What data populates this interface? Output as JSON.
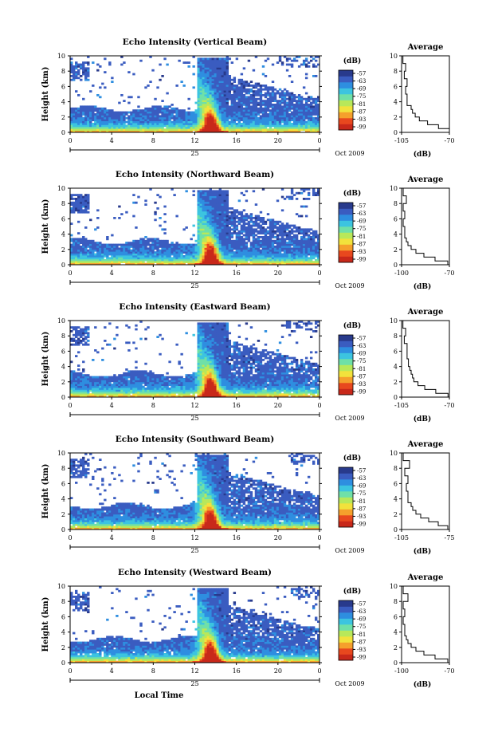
{
  "figure": {
    "date_label": "Oct 2009",
    "day_label": "25",
    "x_axis_title": "Local Time",
    "y_axis_title": "Height (km)",
    "colorbar_title": "(dB)",
    "average_title": "Average",
    "average_unit": "(dB)",
    "colors": {
      "scale": [
        "#283a8c",
        "#3a5cc0",
        "#2e8ee0",
        "#3cc4e0",
        "#6fe0a8",
        "#b8e85a",
        "#f2e23c",
        "#f5a02c",
        "#e8481e",
        "#c8281a"
      ],
      "outline": "#000000",
      "background": "#ffffff"
    }
  },
  "chart_data": [
    {
      "type": "heatmap",
      "title": "Echo Intensity (Vertical Beam)",
      "xlabel": "",
      "ylabel": "Height (km)",
      "xlim": [
        0,
        24
      ],
      "ylim": [
        0,
        10
      ],
      "x_ticks": [
        "0",
        "4",
        "8",
        "12",
        "16",
        "20",
        "0"
      ],
      "y_ticks": [
        "0",
        "2",
        "4",
        "6",
        "8",
        "10"
      ],
      "colorbar": {
        "label": "(dB)",
        "ticks": [
          "-57",
          "-63",
          "-69",
          "-75",
          "-81",
          "-87",
          "-93",
          "-99"
        ]
      },
      "average_profile": {
        "xlim": [
          -105,
          -70
        ],
        "x_ticks": [
          "-105",
          "-70"
        ],
        "y_ticks": [
          "0",
          "2",
          "4",
          "6",
          "8",
          "10"
        ],
        "height_km": [
          0,
          0.5,
          1,
          1.5,
          2,
          2.5,
          3,
          3.5,
          4,
          5,
          6,
          7,
          8,
          9,
          10
        ],
        "db": [
          -70,
          -78,
          -86,
          -92,
          -95,
          -97,
          -98,
          -101,
          -101,
          -102,
          -101,
          -103,
          -102,
          -104,
          -104
        ]
      }
    },
    {
      "type": "heatmap",
      "title": "Echo Intensity (Northward Beam)",
      "xlabel": "",
      "ylabel": "Height (km)",
      "xlim": [
        0,
        24
      ],
      "ylim": [
        0,
        10
      ],
      "x_ticks": [
        "0",
        "4",
        "8",
        "12",
        "16",
        "20",
        "0"
      ],
      "y_ticks": [
        "0",
        "2",
        "4",
        "6",
        "8",
        "10"
      ],
      "colorbar": {
        "label": "(dB)",
        "ticks": [
          "-57",
          "-63",
          "-69",
          "-75",
          "-81",
          "-87",
          "-93",
          "-99"
        ]
      },
      "average_profile": {
        "xlim": [
          -100,
          -70
        ],
        "x_ticks": [
          "-100",
          "-70"
        ],
        "y_ticks": [
          "0",
          "2",
          "4",
          "6",
          "8",
          "10"
        ],
        "height_km": [
          0,
          0.5,
          1,
          1.5,
          2,
          2.5,
          3,
          3.5,
          4,
          5,
          6,
          7,
          8,
          9,
          10
        ],
        "db": [
          -71,
          -79,
          -86,
          -91,
          -94,
          -96,
          -97,
          -98,
          -98,
          -99,
          -98,
          -99,
          -97,
          -99,
          -99
        ]
      }
    },
    {
      "type": "heatmap",
      "title": "Echo Intensity (Eastward Beam)",
      "xlabel": "",
      "ylabel": "Height (km)",
      "xlim": [
        0,
        24
      ],
      "ylim": [
        0,
        10
      ],
      "x_ticks": [
        "0",
        "4",
        "8",
        "12",
        "16",
        "20",
        "0"
      ],
      "y_ticks": [
        "0",
        "2",
        "4",
        "6",
        "8",
        "10"
      ],
      "colorbar": {
        "label": "(dB)",
        "ticks": [
          "-57",
          "-63",
          "-69",
          "-75",
          "-81",
          "-87",
          "-93",
          "-99"
        ]
      },
      "average_profile": {
        "xlim": [
          -105,
          -70
        ],
        "x_ticks": [
          "-105",
          "-70"
        ],
        "y_ticks": [
          "0",
          "2",
          "4",
          "6",
          "8",
          "10"
        ],
        "height_km": [
          0,
          0.5,
          1,
          1.5,
          2,
          2.5,
          3,
          3.5,
          4,
          5,
          6,
          7,
          8,
          9,
          10
        ],
        "db": [
          -71,
          -80,
          -88,
          -93,
          -96,
          -97,
          -98,
          -99,
          -100,
          -101,
          -101,
          -103,
          -102,
          -104,
          -104
        ]
      }
    },
    {
      "type": "heatmap",
      "title": "Echo Intensity (Southward Beam)",
      "xlabel": "",
      "ylabel": "Height (km)",
      "xlim": [
        0,
        24
      ],
      "ylim": [
        0,
        10
      ],
      "x_ticks": [
        "0",
        "4",
        "8",
        "12",
        "16",
        "20",
        "0"
      ],
      "y_ticks": [
        "0",
        "2",
        "4",
        "6",
        "8",
        "10"
      ],
      "colorbar": {
        "label": "(dB)",
        "ticks": [
          "-57",
          "-63",
          "-69",
          "-75",
          "-81",
          "-87",
          "-93",
          "-99"
        ]
      },
      "average_profile": {
        "xlim": [
          -105,
          -75
        ],
        "x_ticks": [
          "-105",
          "-75"
        ],
        "y_ticks": [
          "0",
          "2",
          "4",
          "6",
          "8",
          "10"
        ],
        "height_km": [
          0,
          0.5,
          1,
          1.5,
          2,
          2.5,
          3,
          3.5,
          4,
          5,
          6,
          7,
          8,
          9,
          10
        ],
        "db": [
          -76,
          -82,
          -88,
          -93,
          -96,
          -98,
          -99,
          -101,
          -101,
          -102,
          -101,
          -103,
          -100,
          -104,
          -104
        ]
      }
    },
    {
      "type": "heatmap",
      "title": "Echo Intensity (Westward Beam)",
      "xlabel": "Local Time",
      "ylabel": "Height (km)",
      "xlim": [
        0,
        24
      ],
      "ylim": [
        0,
        10
      ],
      "x_ticks": [
        "0",
        "4",
        "8",
        "12",
        "16",
        "20",
        "0"
      ],
      "y_ticks": [
        "0",
        "2",
        "4",
        "6",
        "8",
        "10"
      ],
      "colorbar": {
        "label": "(dB)",
        "ticks": [
          "-57",
          "-63",
          "-69",
          "-75",
          "-81",
          "-87",
          "-93",
          "-99"
        ]
      },
      "average_profile": {
        "xlim": [
          -100,
          -70
        ],
        "x_ticks": [
          "-100",
          "-70"
        ],
        "y_ticks": [
          "0",
          "2",
          "4",
          "6",
          "8",
          "10"
        ],
        "height_km": [
          0,
          0.5,
          1,
          1.5,
          2,
          2.5,
          3,
          3.5,
          4,
          5,
          6,
          7,
          8,
          9,
          10
        ],
        "db": [
          -71,
          -79,
          -86,
          -91,
          -94,
          -96,
          -97,
          -98,
          -98,
          -99,
          -98,
          -99,
          -96,
          -99,
          -99
        ]
      }
    }
  ]
}
